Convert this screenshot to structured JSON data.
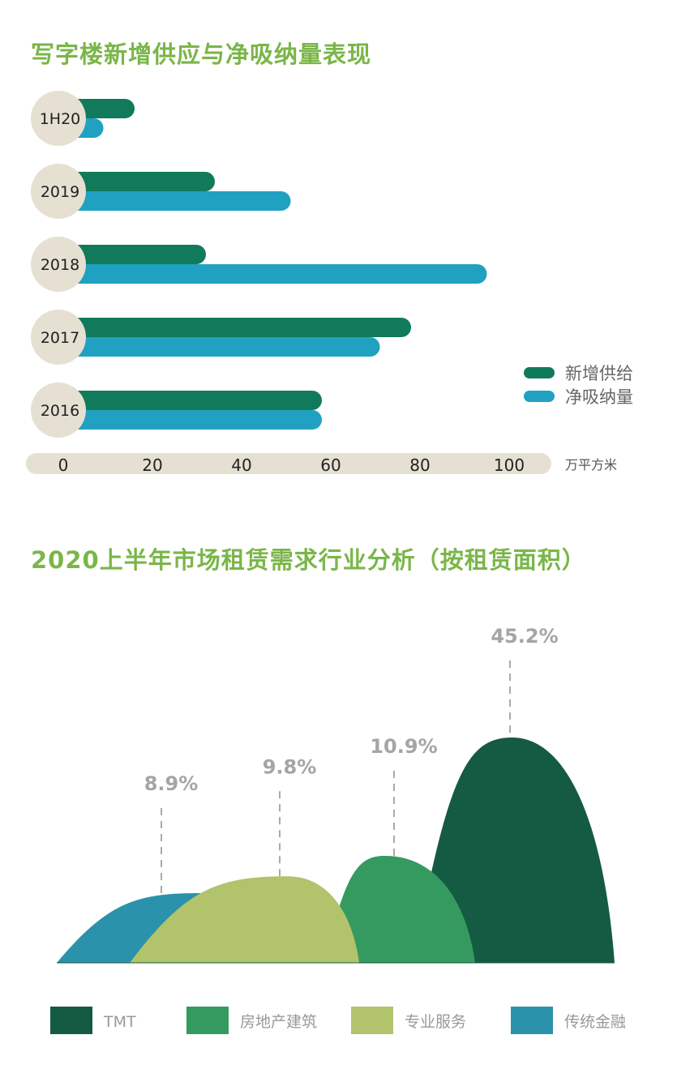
{
  "chart_data": [
    {
      "type": "bar",
      "orientation": "horizontal",
      "title": "写字楼新增供应与净吸纳量表现",
      "categories": [
        "1H20",
        "2019",
        "2018",
        "2017",
        "2016"
      ],
      "series": [
        {
          "name": "新增供给",
          "color": "#117a5b",
          "values": [
            16,
            34,
            32,
            78,
            58
          ]
        },
        {
          "name": "净吸纳量",
          "color": "#21a1c1",
          "values": [
            9,
            51,
            95,
            71,
            58
          ]
        }
      ],
      "xticks": [
        "0",
        "20",
        "40",
        "60",
        "80",
        "100"
      ],
      "xlim": [
        0,
        100
      ],
      "xlabel": "万平方米",
      "legend": "right",
      "grid": false
    },
    {
      "type": "area",
      "title": "2020上半年市场租赁需求行业分析（按租赁面积）",
      "categories": [
        "传统金融",
        "专业服务",
        "房地产建筑",
        "TMT"
      ],
      "values": [
        8.9,
        9.8,
        10.9,
        45.2
      ],
      "labels": [
        "8.9%",
        "9.8%",
        "10.9%",
        "45.2%"
      ],
      "colors": [
        "#2a93ab",
        "#b1c36b",
        "#359a5f",
        "#155a42"
      ],
      "legend_order": [
        "TMT",
        "房地产建筑",
        "专业服务",
        "传统金融"
      ],
      "legend": "bottom"
    }
  ]
}
